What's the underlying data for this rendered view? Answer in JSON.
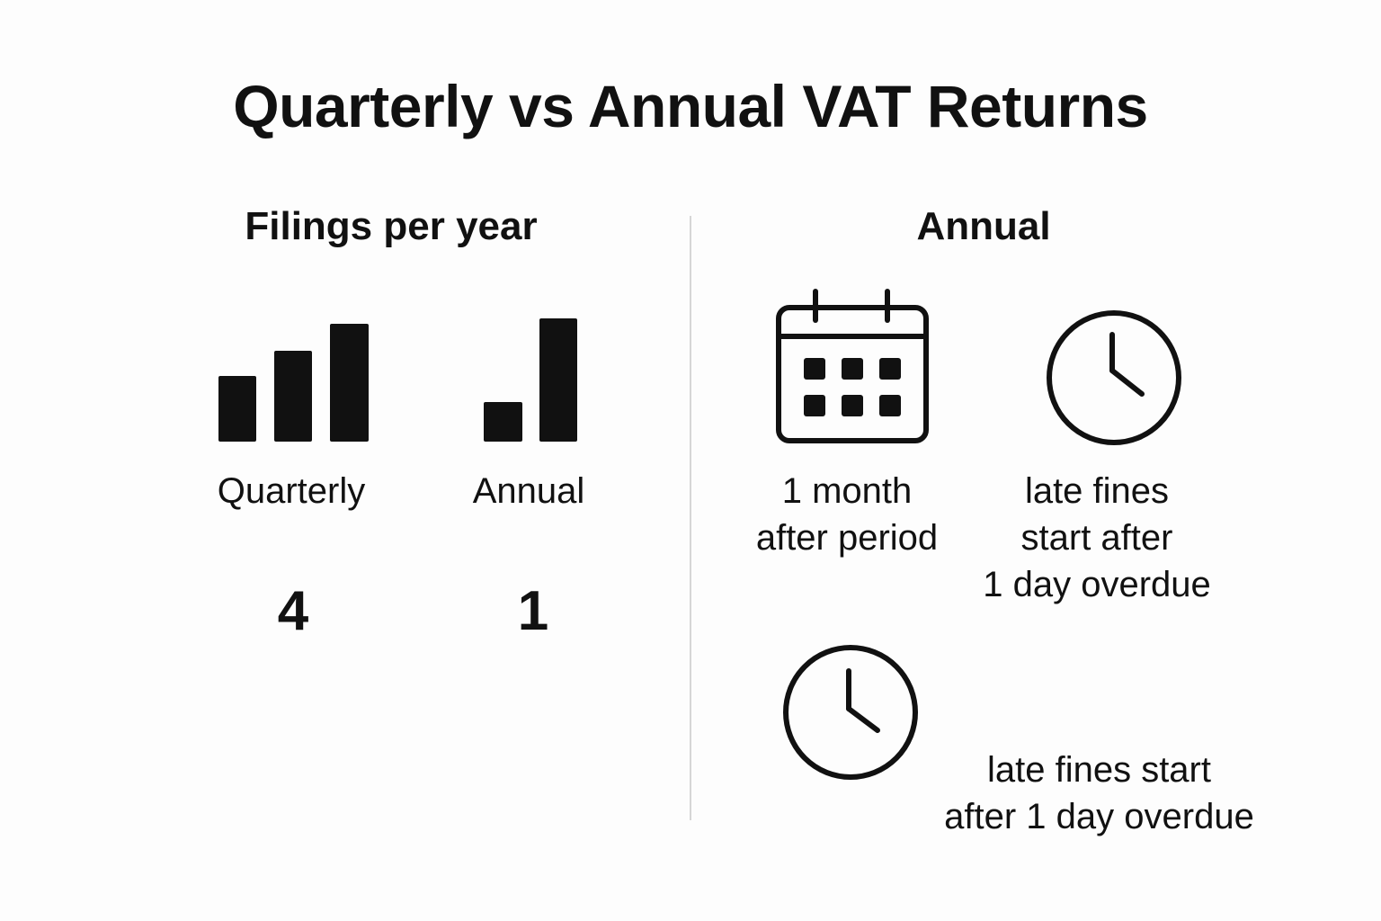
{
  "title": "Quarterly vs Annual VAT Returns",
  "left_panel": {
    "heading": "Filings per year",
    "columns": [
      {
        "label": "Quarterly",
        "count": "4"
      },
      {
        "label": "Annual",
        "count": "1"
      }
    ]
  },
  "right_panel": {
    "heading": "Annual",
    "items": [
      {
        "icon": "calendar-icon",
        "lines": [
          "1 month",
          "after period"
        ]
      },
      {
        "icon": "clock-icon",
        "lines": [
          "late fines",
          "start after",
          "1 day overdue"
        ]
      },
      {
        "icon": "clock-icon",
        "lines": [
          "late fines start",
          "after 1 day overdue"
        ]
      }
    ]
  },
  "colors": {
    "ink": "#111111",
    "background": "#fdfdfd",
    "divider": "#d6d6d6"
  }
}
